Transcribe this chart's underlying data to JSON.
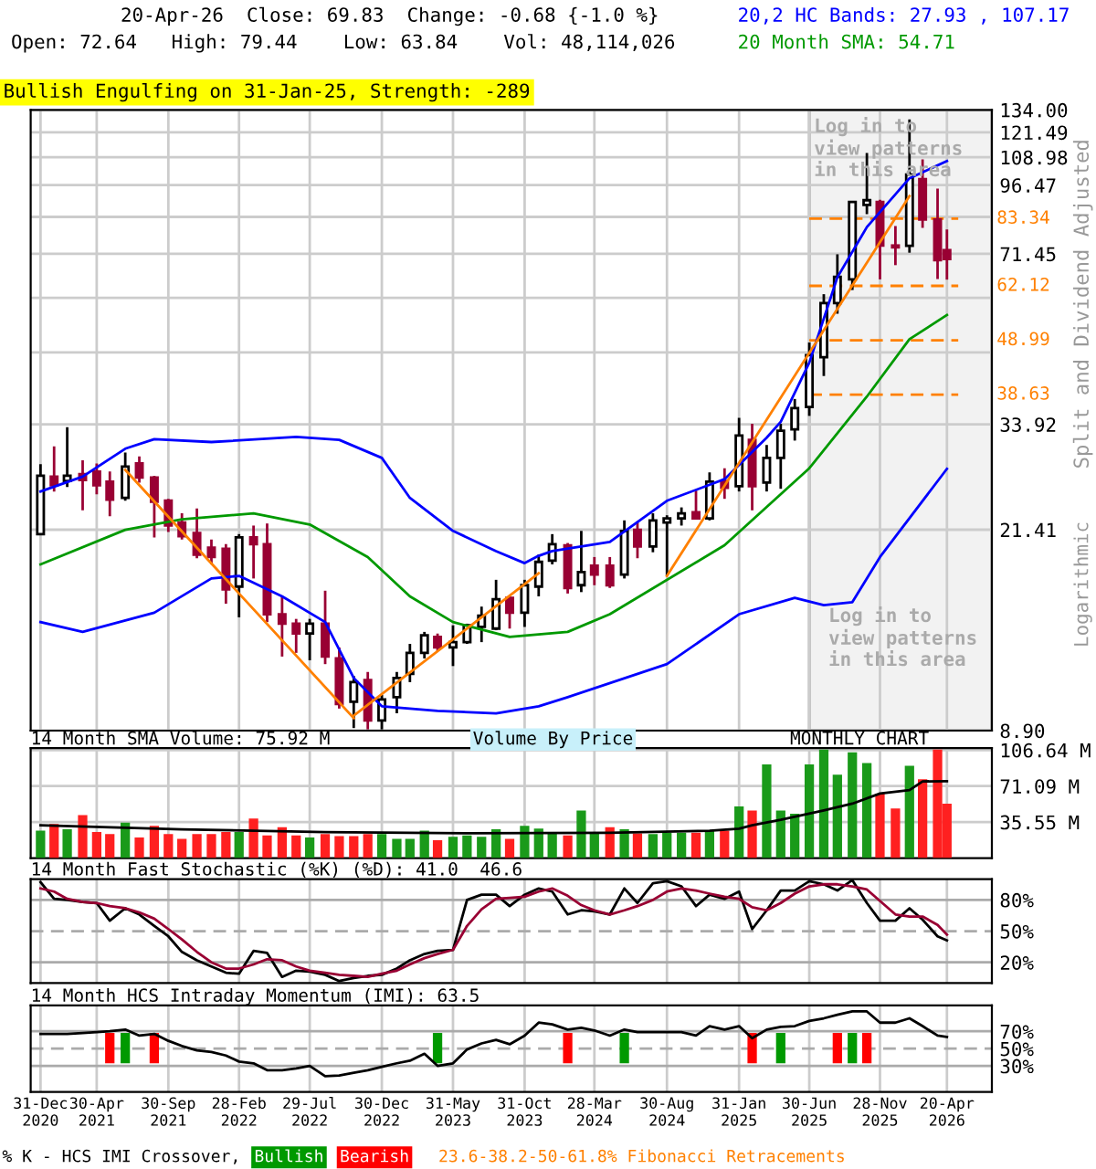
{
  "chart_data": [
    {
      "type": "candlestick",
      "ylabel": "Split and Dividend Adjusted",
      "log": true,
      "grid": true,
      "tick_labels": "y",
      "annotations": [
        "20-Apr-26  Close: 69.83  Change: -0.68 {-1.0 %}",
        "Open: 72.64   High: 79.44    Low: 63.84    Vol: 48,114,026",
        "Bullish Engulfing on 31-Jan-25, Strength: -289",
        "Log in to\nview patterns\nin this area",
        "Logarithmic"
      ],
      "x": [
        "2020-12-31",
        "2021-01-29",
        "2021-02-26",
        "2021-03-31",
        "2021-04-30",
        "2021-05-28",
        "2021-06-30",
        "2021-07-30",
        "2021-08-31",
        "2021-09-30",
        "2021-10-29",
        "2021-11-30",
        "2021-12-31",
        "2022-01-31",
        "2022-02-28",
        "2022-03-31",
        "2022-04-29",
        "2022-05-31",
        "2022-06-30",
        "2022-07-29",
        "2022-08-31",
        "2022-09-30",
        "2022-10-31",
        "2022-11-30",
        "2022-12-30",
        "2023-01-31",
        "2023-02-28",
        "2023-03-31",
        "2023-04-28",
        "2023-05-31",
        "2023-06-30",
        "2023-07-31",
        "2023-08-31",
        "2023-09-29",
        "2023-10-31",
        "2023-11-30",
        "2023-12-29",
        "2024-01-31",
        "2024-02-29",
        "2024-03-28",
        "2024-04-30",
        "2024-05-31",
        "2024-06-28",
        "2024-07-31",
        "2024-08-30",
        "2024-09-30",
        "2024-10-31",
        "2024-11-29",
        "2024-12-31",
        "2025-01-31",
        "2025-02-28",
        "2025-03-31",
        "2025-04-30",
        "2025-05-30",
        "2025-06-30",
        "2025-07-31",
        "2025-08-29",
        "2025-09-30",
        "2025-10-31",
        "2025-11-28",
        "2025-12-31",
        "2026-01-30",
        "2026-02-27",
        "2026-03-31",
        "2026-04-20"
      ],
      "ohlc": [
        [
          21.0,
          28.5,
          21.0,
          27.1
        ],
        [
          27.0,
          30.8,
          25.3,
          26.0
        ],
        [
          26.5,
          33.5,
          25.8,
          27.1
        ],
        [
          27.3,
          29.0,
          23.3,
          26.6
        ],
        [
          27.6,
          28.6,
          25.0,
          26.0
        ],
        [
          26.4,
          27.6,
          22.7,
          24.4
        ],
        [
          24.6,
          30.0,
          24.3,
          28.2
        ],
        [
          28.6,
          29.5,
          26.3,
          26.9
        ],
        [
          26.9,
          27.1,
          20.7,
          24.2
        ],
        [
          24.3,
          24.5,
          21.2,
          21.8
        ],
        [
          22.1,
          23.0,
          20.5,
          20.8
        ],
        [
          21.1,
          23.5,
          18.9,
          19.2
        ],
        [
          19.8,
          20.5,
          18.4,
          19.0
        ],
        [
          19.7,
          20.1,
          15.5,
          16.5
        ],
        [
          16.7,
          21.0,
          14.6,
          20.7
        ],
        [
          20.7,
          21.8,
          17.3,
          20.1
        ],
        [
          20.1,
          22.0,
          14.3,
          14.8
        ],
        [
          14.8,
          16.0,
          12.3,
          14.2
        ],
        [
          14.2,
          14.5,
          12.5,
          13.6
        ],
        [
          13.6,
          14.5,
          12.1,
          14.2
        ],
        [
          14.2,
          16.4,
          11.9,
          12.3
        ],
        [
          12.2,
          12.8,
          9.8,
          10.0
        ],
        [
          10.1,
          11.3,
          9.0,
          11.0
        ],
        [
          11.1,
          11.5,
          8.95,
          9.3
        ],
        [
          9.3,
          10.4,
          8.95,
          10.2
        ],
        [
          10.3,
          11.5,
          9.6,
          11.2
        ],
        [
          11.4,
          13.0,
          11.0,
          12.5
        ],
        [
          12.5,
          13.7,
          12.2,
          13.5
        ],
        [
          13.4,
          13.6,
          12.6,
          12.8
        ],
        [
          12.8,
          14.1,
          11.8,
          13.1
        ],
        [
          13.1,
          14.2,
          13.0,
          14.1
        ],
        [
          14.0,
          15.3,
          13.1,
          14.7
        ],
        [
          13.9,
          17.2,
          13.8,
          15.8
        ],
        [
          15.9,
          16.0,
          13.9,
          14.9
        ],
        [
          14.9,
          17.2,
          14.0,
          16.8
        ],
        [
          16.7,
          19.2,
          16.0,
          18.6
        ],
        [
          18.7,
          21.0,
          18.4,
          20.1
        ],
        [
          20.0,
          20.2,
          16.2,
          16.6
        ],
        [
          16.8,
          21.3,
          16.3,
          17.8
        ],
        [
          18.3,
          19.0,
          16.8,
          17.6
        ],
        [
          18.3,
          19.0,
          16.6,
          16.8
        ],
        [
          17.6,
          22.3,
          17.3,
          21.3
        ],
        [
          21.4,
          22.2,
          18.9,
          19.9
        ],
        [
          19.9,
          23.0,
          19.4,
          22.3
        ],
        [
          22.1,
          22.8,
          17.5,
          22.5
        ],
        [
          22.5,
          23.6,
          21.8,
          23.0
        ],
        [
          23.1,
          25.4,
          22.5,
          22.5
        ],
        [
          22.5,
          27.5,
          22.3,
          26.4
        ],
        [
          26.5,
          28.0,
          24.5,
          25.7
        ],
        [
          25.9,
          34.9,
          25.3,
          32.3
        ],
        [
          31.7,
          34.0,
          23.3,
          25.9
        ],
        [
          26.3,
          31.0,
          25.3,
          29.3
        ],
        [
          29.3,
          34.0,
          25.6,
          33.0
        ],
        [
          33.2,
          37.9,
          31.6,
          36.4
        ],
        [
          36.6,
          48.5,
          35.2,
          45.9
        ],
        [
          45.5,
          59.9,
          41.9,
          57.6
        ],
        [
          57.6,
          71.3,
          55.0,
          64.6
        ],
        [
          63.9,
          90.0,
          61.0,
          89.6
        ],
        [
          88.5,
          111,
          85,
          90.3
        ],
        [
          89.6,
          90.5,
          63.9,
          74.1
        ],
        [
          74.1,
          80.7,
          68.0,
          73.5
        ],
        [
          74.0,
          128.6,
          71.8,
          101
        ],
        [
          99,
          108,
          80,
          83
        ],
        [
          83,
          95,
          64,
          69.5
        ],
        [
          72.64,
          79.44,
          63.84,
          69.83
        ]
      ],
      "series": [
        {
          "type": "line",
          "name": "20,2 HC Bands: 27.93 , 107.17",
          "color": "#0000ff",
          "x": [
            "2020-12-31",
            "2021-03-31",
            "2021-06-30",
            "2021-08-31",
            "2021-12-31",
            "2022-06-30",
            "2022-09-30",
            "2022-12-30",
            "2023-02-28",
            "2023-05-31",
            "2023-08-31",
            "2023-10-31",
            "2023-11-30",
            "2023-12-29",
            "2024-04-30",
            "2024-08-30",
            "2024-12-31",
            "2025-03-31",
            "2025-04-30",
            "2025-06-30",
            "2025-08-29",
            "2025-10-31",
            "2026-01-30",
            "2026-04-20"
          ],
          "values": [
            25.3,
            27.0,
            30.5,
            31.8,
            31.4,
            32.1,
            31.7,
            29.3,
            24.6,
            21.3,
            19.5,
            18.5,
            19.1,
            19.5,
            20.3,
            24.3,
            26.7,
            32.0,
            34.3,
            44.4,
            64.5,
            80.3,
            99.4,
            107.17
          ]
        },
        {
          "type": "line",
          "color": "#0000ff",
          "x": [
            "2020-12-31",
            "2021-03-31",
            "2021-08-31",
            "2021-12-31",
            "2022-02-28",
            "2022-05-31",
            "2022-08-31",
            "2022-10-31",
            "2022-12-30",
            "2023-04-28",
            "2023-08-31",
            "2023-11-30",
            "2024-01-31",
            "2024-08-30",
            "2025-01-31",
            "2025-05-30",
            "2025-07-31",
            "2025-09-30",
            "2025-11-28",
            "2026-04-20"
          ],
          "values": [
            14.3,
            13.7,
            14.9,
            17.3,
            17.5,
            16.0,
            14.3,
            11.2,
            9.9,
            9.7,
            9.6,
            9.9,
            10.3,
            11.9,
            14.8,
            15.9,
            15.4,
            15.6,
            19.0,
            27.93
          ]
        },
        {
          "type": "line",
          "name": "20 Month SMA: 54.71",
          "color": "#009900",
          "x": [
            "2020-12-31",
            "2021-06-30",
            "2021-10-29",
            "2022-03-31",
            "2022-07-29",
            "2022-11-30",
            "2023-02-28",
            "2023-05-31",
            "2023-09-29",
            "2024-01-31",
            "2024-04-30",
            "2024-12-31",
            "2025-06-30",
            "2025-10-31",
            "2026-01-30",
            "2026-04-20"
          ],
          "values": [
            18.4,
            21.4,
            22.4,
            23.0,
            21.9,
            19.0,
            16.0,
            14.3,
            13.4,
            13.7,
            14.8,
            20.0,
            28.0,
            38.3,
            49.2,
            54.71
          ]
        },
        {
          "type": "line",
          "color": "#ff8000",
          "x": [
            "2021-06-30",
            "2022-10-31"
          ],
          "values": [
            27.8,
            9.4
          ]
        },
        {
          "type": "line",
          "color": "#ff8000",
          "x": [
            "2022-10-31",
            "2023-11-30"
          ],
          "values": [
            9.5,
            17.7
          ]
        },
        {
          "type": "line",
          "color": "#ff8000",
          "x": [
            "2024-08-30",
            "2026-01-30"
          ],
          "values": [
            17.5,
            92.0
          ]
        }
      ],
      "xlim": [
        "2020-12-10",
        "2026-07-25"
      ],
      "xticks": [
        "2020-12-31",
        "2021-04-30",
        "2021-09-30",
        "2022-02-28",
        "2022-07-29",
        "2022-12-30",
        "2023-05-31",
        "2023-10-31",
        "2024-03-28",
        "2024-08-30",
        "2025-01-31",
        "2025-06-30",
        "2025-11-28",
        "2026-04-20"
      ],
      "ylim": [
        8.9,
        134.0
      ],
      "yticks": [
        {
          "value": 8.9,
          "label": "8.90"
        },
        21.41,
        33.92,
        {
          "value": 46.43,
          "label": null
        },
        {
          "value": 58.94,
          "label": null
        },
        71.45,
        {
          "value": 83.96,
          "label": null
        },
        96.47,
        108.98,
        121.49,
        {
          "value": 134.0,
          "label": "134.00"
        }
      ],
      "ref_lines": [
        {
          "axis": "y",
          "value": 83.34,
          "label": "83.34",
          "color": "#ff8000",
          "line_style": "dashed"
        },
        {
          "axis": "y",
          "value": 62.12,
          "label": "62.12",
          "color": "#ff8000",
          "line_style": "dashed"
        },
        {
          "axis": "y",
          "value": 48.99,
          "label": "48.99",
          "color": "#ff8000",
          "line_style": "dashed"
        },
        {
          "axis": "y",
          "value": 38.63,
          "label": "38.63",
          "color": "#ff8000",
          "line_style": "dashed"
        }
      ],
      "bands": [
        {
          "axis": "x",
          "from": "2025-06-30",
          "to": "2026-07-25",
          "label": "Log in to\nview patterns\nin this area",
          "color": "#f2f2f2"
        }
      ]
    },
    {
      "type": "bar",
      "title": "14 Month SMA Volume: 75.92 M",
      "grid": true,
      "tick_labels": "y",
      "annotations": [
        "Volume By Price",
        "MONTHLY CHART"
      ],
      "x": [
        "2020-12-31",
        "2021-01-29",
        "2021-02-26",
        "2021-03-31",
        "2021-04-30",
        "2021-05-28",
        "2021-06-30",
        "2021-07-30",
        "2021-08-31",
        "2021-09-30",
        "2021-10-29",
        "2021-11-30",
        "2021-12-31",
        "2022-01-31",
        "2022-02-28",
        "2022-03-31",
        "2022-04-29",
        "2022-05-31",
        "2022-06-30",
        "2022-07-29",
        "2022-08-31",
        "2022-09-30",
        "2022-10-31",
        "2022-11-30",
        "2022-12-30",
        "2023-01-31",
        "2023-02-28",
        "2023-03-31",
        "2023-04-28",
        "2023-05-31",
        "2023-06-30",
        "2023-07-31",
        "2023-08-31",
        "2023-09-29",
        "2023-10-31",
        "2023-11-30",
        "2023-12-29",
        "2024-01-31",
        "2024-02-29",
        "2024-03-28",
        "2024-04-30",
        "2024-05-31",
        "2024-06-28",
        "2024-07-31",
        "2024-08-30",
        "2024-09-30",
        "2024-10-31",
        "2024-11-29",
        "2024-12-31",
        "2025-01-31",
        "2025-02-28",
        "2025-03-31",
        "2025-04-30",
        "2025-05-30",
        "2025-06-30",
        "2025-07-31",
        "2025-08-29",
        "2025-09-30",
        "2025-10-31",
        "2025-11-28",
        "2025-12-31",
        "2026-01-30",
        "2026-02-27",
        "2026-03-31",
        "2026-04-20"
      ],
      "series": [
        {
          "type": "bar",
          "values": [
            27.0,
            33.7,
            28.4,
            42.4,
            25.7,
            23.7,
            35.0,
            20.3,
            31.7,
            23.7,
            19.0,
            23.7,
            23.7,
            25.7,
            25.7,
            39.0,
            22.3,
            30.4,
            22.3,
            20.3,
            23.7,
            21.6,
            21.6,
            23.7,
            23.7,
            19.0,
            19.0,
            27.0,
            17.7,
            21.0,
            22.3,
            21.0,
            28.4,
            19.0,
            31.7,
            29.0,
            24.4,
            22.3,
            47.0,
            25.7,
            30.4,
            28.4,
            24.4,
            23.7,
            25.0,
            25.0,
            25.0,
            27.0,
            27.0,
            51.0,
            47.0,
            92.4,
            47.0,
            43.7,
            92.4,
            107.0,
            82.4,
            104.4,
            93.7,
            63.7,
            49.0,
            91.0,
            77.7,
            107.0,
            53.7
          ],
          "colors": [
            "#1a9a1a",
            "#ff2020",
            "#1a9a1a",
            "#ff2020",
            "#ff2020",
            "#ff2020",
            "#1a9a1a",
            "#ff2020",
            "#ff2020",
            "#ff2020",
            "#ff2020",
            "#ff2020",
            "#ff2020",
            "#ff2020",
            "#1a9a1a",
            "#ff2020",
            "#ff2020",
            "#ff2020",
            "#ff2020",
            "#1a9a1a",
            "#ff2020",
            "#ff2020",
            "#ff2020",
            "#ff2020",
            "#1a9a1a",
            "#1a9a1a",
            "#1a9a1a",
            "#1a9a1a",
            "#ff2020",
            "#1a9a1a",
            "#1a9a1a",
            "#1a9a1a",
            "#1a9a1a",
            "#ff2020",
            "#1a9a1a",
            "#1a9a1a",
            "#1a9a1a",
            "#ff2020",
            "#1a9a1a",
            "#1a9a1a",
            "#ff2020",
            "#1a9a1a",
            "#ff2020",
            "#1a9a1a",
            "#1a9a1a",
            "#1a9a1a",
            "#ff2020",
            "#1a9a1a",
            "#ff2020",
            "#1a9a1a",
            "#ff2020",
            "#1a9a1a",
            "#1a9a1a",
            "#1a9a1a",
            "#1a9a1a",
            "#1a9a1a",
            "#1a9a1a",
            "#1a9a1a",
            "#1a9a1a",
            "#ff2020",
            "#ff2020",
            "#1a9a1a",
            "#ff2020",
            "#ff2020",
            "#ff2020"
          ]
        },
        {
          "type": "line",
          "color": "#000000",
          "x": [
            "2020-12-31",
            "2021-10-29",
            "2022-08-31",
            "2023-06-30",
            "2024-04-30",
            "2024-11-29",
            "2025-01-31",
            "2025-02-28",
            "2025-04-30",
            "2025-07-31",
            "2025-09-30",
            "2025-11-28",
            "2026-01-30",
            "2026-02-27",
            "2026-04-20"
          ],
          "values": [
            32.4,
            28.4,
            25.7,
            24.4,
            25.0,
            27.0,
            29.0,
            32.4,
            37.7,
            47.0,
            53.7,
            63.7,
            67.1,
            75.7,
            75.92
          ]
        }
      ],
      "xlim": [
        "2020-12-10",
        "2026-07-25"
      ],
      "xticks": [
        "2020-12-31",
        "2021-04-30",
        "2021-09-30",
        "2022-02-28",
        "2022-07-29",
        "2022-12-30",
        "2023-05-31",
        "2023-10-31",
        "2024-03-28",
        "2024-08-30",
        "2025-01-31",
        "2025-06-30",
        "2025-11-28",
        "2026-04-20"
      ],
      "ylim": [
        0,
        108.5
      ],
      "yticks": [
        {
          "value": 35.55,
          "label": "35.55 M"
        },
        {
          "value": 71.09,
          "label": "71.09 M"
        },
        {
          "value": 106.64,
          "label": "106.64 M"
        }
      ]
    },
    {
      "type": "line",
      "title": "14 Month Fast Stochastic (%K) (%D): 41.0  46.6",
      "grid": "x",
      "tick_labels": "y",
      "x": [
        "2020-12-31",
        "2021-01-29",
        "2021-02-26",
        "2021-03-31",
        "2021-04-30",
        "2021-05-28",
        "2021-06-30",
        "2021-07-30",
        "2021-08-31",
        "2021-09-30",
        "2021-10-29",
        "2021-11-30",
        "2021-12-31",
        "2022-01-31",
        "2022-02-28",
        "2022-03-31",
        "2022-04-29",
        "2022-05-31",
        "2022-06-30",
        "2022-07-29",
        "2022-08-31",
        "2022-09-30",
        "2022-10-31",
        "2022-11-30",
        "2022-12-30",
        "2023-01-31",
        "2023-02-28",
        "2023-03-31",
        "2023-04-28",
        "2023-05-31",
        "2023-06-30",
        "2023-07-31",
        "2023-08-31",
        "2023-09-29",
        "2023-10-31",
        "2023-11-30",
        "2023-12-29",
        "2024-01-31",
        "2024-02-29",
        "2024-03-28",
        "2024-04-30",
        "2024-05-31",
        "2024-06-28",
        "2024-07-31",
        "2024-08-30",
        "2024-09-30",
        "2024-10-31",
        "2024-11-29",
        "2024-12-31",
        "2025-01-31",
        "2025-02-28",
        "2025-03-31",
        "2025-04-30",
        "2025-05-30",
        "2025-06-30",
        "2025-07-31",
        "2025-08-29",
        "2025-09-30",
        "2025-10-31",
        "2025-11-28",
        "2025-12-31",
        "2026-01-30",
        "2026-02-27",
        "2026-03-31",
        "2026-04-20"
      ],
      "series": [
        {
          "color": "#000000",
          "values": [
            97,
            81,
            80,
            78,
            77,
            60,
            72,
            66,
            55,
            45,
            30,
            22,
            16,
            10,
            9,
            31,
            29,
            6,
            12,
            11,
            8,
            2,
            5,
            7,
            8,
            14,
            22,
            28,
            31,
            32,
            80,
            85,
            85,
            74,
            85,
            91,
            88,
            66,
            70,
            69,
            66,
            91,
            77,
            96,
            98,
            93,
            74,
            85,
            81,
            88,
            52,
            70,
            89,
            89,
            98,
            95,
            89,
            99,
            77,
            60,
            60,
            72,
            61,
            45,
            41.0
          ]
        },
        {
          "color": "#990033",
          "values": [
            91,
            88,
            81,
            78,
            77,
            74,
            72,
            68,
            62,
            52,
            42,
            30,
            20,
            14,
            14,
            18,
            23,
            22,
            16,
            12,
            10,
            8,
            7,
            6,
            9,
            12,
            18,
            24,
            28,
            32,
            55,
            71,
            81,
            82,
            83,
            88,
            91,
            84,
            75,
            70,
            66,
            70,
            74,
            80,
            88,
            91,
            89,
            86,
            83,
            81,
            73,
            70,
            77,
            86,
            93,
            95,
            95,
            93,
            90,
            79,
            66,
            64,
            64,
            56,
            46.6
          ]
        }
      ],
      "xlim": [
        "2020-12-10",
        "2026-07-25"
      ],
      "xticks": [
        "2020-12-31",
        "2021-04-30",
        "2021-09-30",
        "2022-02-28",
        "2022-07-29",
        "2022-12-30",
        "2023-05-31",
        "2023-10-31",
        "2024-03-28",
        "2024-08-30",
        "2025-01-31",
        "2025-06-30",
        "2025-11-28",
        "2026-04-20"
      ],
      "ylim": [
        0,
        100
      ],
      "yticks": [
        {
          "value": 20,
          "label": "20%"
        },
        {
          "value": 50,
          "label": "50%"
        },
        {
          "value": 80,
          "label": "80%"
        }
      ],
      "ref_lines": [
        {
          "axis": "y",
          "value": 20,
          "color": "#aaaaaa",
          "line_style": "solid"
        },
        {
          "axis": "y",
          "value": 50,
          "color": "#aaaaaa",
          "line_style": "dashed"
        },
        {
          "axis": "y",
          "value": 80,
          "color": "#aaaaaa",
          "line_style": "solid"
        }
      ]
    },
    {
      "type": "line",
      "title": "14 Month HCS Intraday Momentum (IMI): 63.5",
      "grid": "x",
      "legend": "bottom",
      "annotations": [
        "% K - HCS IMI Crossover,",
        "23.6-38.2-50-61.8% Fibonacci Retracements"
      ],
      "x": [
        "2020-12-31",
        "2021-01-29",
        "2021-02-26",
        "2021-03-31",
        "2021-04-30",
        "2021-05-28",
        "2021-06-30",
        "2021-07-30",
        "2021-08-31",
        "2021-09-30",
        "2021-10-29",
        "2021-11-30",
        "2021-12-31",
        "2022-01-31",
        "2022-02-28",
        "2022-03-31",
        "2022-04-29",
        "2022-05-31",
        "2022-06-30",
        "2022-07-29",
        "2022-08-31",
        "2022-09-30",
        "2022-10-31",
        "2022-11-30",
        "2022-12-30",
        "2023-01-31",
        "2023-02-28",
        "2023-03-31",
        "2023-04-28",
        "2023-05-31",
        "2023-06-30",
        "2023-07-31",
        "2023-08-31",
        "2023-09-29",
        "2023-10-31",
        "2023-11-30",
        "2023-12-29",
        "2024-01-31",
        "2024-02-29",
        "2024-03-28",
        "2024-04-30",
        "2024-05-31",
        "2024-06-28",
        "2024-07-31",
        "2024-08-30",
        "2024-09-30",
        "2024-10-31",
        "2024-11-29",
        "2024-12-31",
        "2025-01-31",
        "2025-02-28",
        "2025-03-31",
        "2025-04-30",
        "2025-05-30",
        "2025-06-30",
        "2025-07-31",
        "2025-08-29",
        "2025-09-30",
        "2025-10-31",
        "2025-11-28",
        "2025-12-31",
        "2026-01-30",
        "2026-02-27",
        "2026-03-31",
        "2026-04-20"
      ],
      "series": [
        {
          "type": "bar",
          "name": "Bullish",
          "color": "#009900",
          "x": [
            "2021-06-30",
            "2023-04-28",
            "2024-05-31",
            "2025-04-30",
            "2025-09-30"
          ],
          "base": [
            33,
            33,
            33,
            33,
            33
          ],
          "values": [
            35,
            35,
            35,
            35,
            35
          ]
        },
        {
          "type": "bar",
          "name": "Bearish",
          "color": "#ff0000",
          "x": [
            "2021-05-28",
            "2021-08-31",
            "2024-01-31",
            "2025-02-28",
            "2025-08-29",
            "2025-10-31"
          ],
          "base": [
            33,
            33,
            33,
            33,
            33,
            33
          ],
          "values": [
            35,
            35,
            35,
            35,
            35,
            35
          ]
        },
        {
          "type": "line",
          "color": "#000000",
          "values": [
            67,
            67,
            67,
            68,
            69,
            70,
            72,
            65,
            67,
            59,
            53,
            48,
            46,
            42,
            35,
            33,
            25,
            25,
            27,
            30,
            18,
            19,
            22,
            25,
            29,
            33,
            36,
            44,
            30,
            33,
            49,
            56,
            60,
            55,
            65,
            80,
            78,
            72,
            74,
            71,
            65,
            72,
            69,
            69,
            69,
            69,
            65,
            76,
            72,
            76,
            62,
            72,
            75,
            76,
            82,
            85,
            89,
            93,
            93,
            80,
            80,
            85,
            76,
            65,
            63.5
          ]
        }
      ],
      "xlim": [
        "2020-12-10",
        "2026-07-25"
      ],
      "xticks": [
        {
          "value": "2020-12-31",
          "label": "31-Dec\n2020"
        },
        {
          "value": "2021-04-30",
          "label": "30-Apr\n2021"
        },
        {
          "value": "2021-09-30",
          "label": "30-Sep\n2021"
        },
        {
          "value": "2022-02-28",
          "label": "28-Feb\n2022"
        },
        {
          "value": "2022-07-29",
          "label": "29-Jul\n2022"
        },
        {
          "value": "2022-12-30",
          "label": "30-Dec\n2022"
        },
        {
          "value": "2023-05-31",
          "label": "31-May\n2023"
        },
        {
          "value": "2023-10-31",
          "label": "31-Oct\n2023"
        },
        {
          "value": "2024-03-28",
          "label": "28-Mar\n2024"
        },
        {
          "value": "2024-08-30",
          "label": "30-Aug\n2024"
        },
        {
          "value": "2025-01-31",
          "label": "31-Jan\n2025"
        },
        {
          "value": "2025-06-30",
          "label": "30-Jun\n2025"
        },
        {
          "value": "2025-11-28",
          "label": "28-Nov\n2025"
        },
        {
          "value": "2026-04-20",
          "label": "20-Apr\n2026"
        }
      ],
      "ylim": [
        0,
        100
      ],
      "yticks": [
        {
          "value": 30,
          "label": "30%"
        },
        {
          "value": 50,
          "label": "50%"
        },
        {
          "value": 70,
          "label": "70%"
        }
      ],
      "ref_lines": [
        {
          "axis": "y",
          "value": 30,
          "color": "#aaaaaa",
          "line_style": "solid"
        },
        {
          "axis": "y",
          "value": 50,
          "color": "#aaaaaa",
          "line_style": "dashed"
        },
        {
          "axis": "y",
          "value": 70,
          "color": "#aaaaaa",
          "line_style": "solid"
        }
      ]
    }
  ]
}
